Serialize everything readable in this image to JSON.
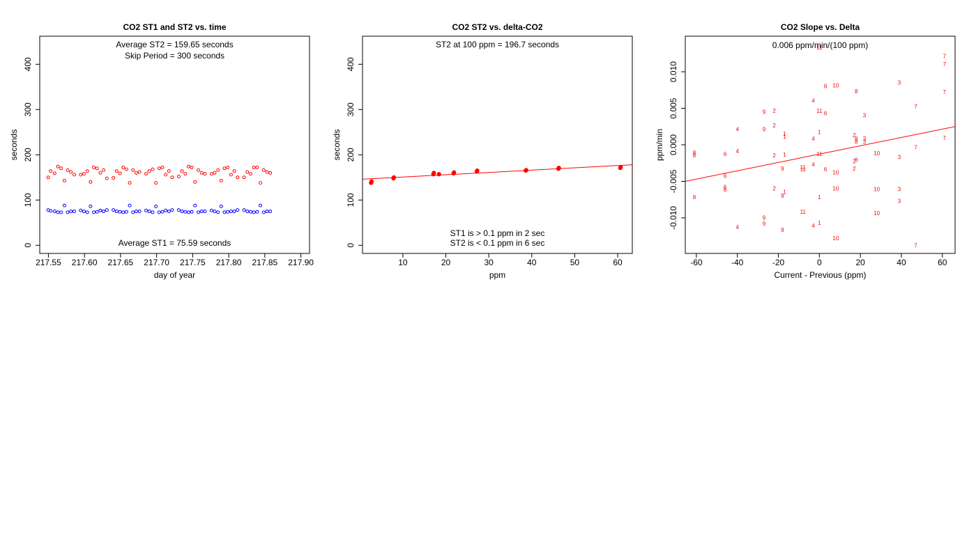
{
  "colors": {
    "st2": "#ff0000",
    "st1": "#0000ff",
    "fit": "#ff0000"
  },
  "chart_data": [
    {
      "type": "scatter",
      "title": "CO2 ST1 and ST2 vs. time",
      "xlabel": "day of year",
      "ylabel": "seconds",
      "xlim": [
        217.538,
        217.912
      ],
      "ylim": [
        -18,
        462
      ],
      "xticks": [
        "217.55",
        "217.60",
        "217.65",
        "217.70",
        "217.75",
        "217.80",
        "217.85",
        "217.90"
      ],
      "yticks": [
        "0",
        "100",
        "200",
        "300",
        "400"
      ],
      "annotations": [
        "Average ST2 =  159.65  seconds",
        "Skip Period =  300  seconds",
        "Average ST1 =  75.59  seconds"
      ],
      "series": [
        {
          "color": "#ff0000",
          "points": [
            [
              217.5497,
              150
            ],
            [
              217.5531,
              164
            ],
            [
              217.5586,
              159
            ],
            [
              217.5631,
              174
            ],
            [
              217.5676,
              170
            ],
            [
              217.5722,
              143
            ],
            [
              217.5767,
              166
            ],
            [
              217.5812,
              162
            ],
            [
              217.5858,
              156
            ],
            [
              217.5948,
              156
            ],
            [
              217.5993,
              158
            ],
            [
              217.6039,
              164
            ],
            [
              217.6084,
              140
            ],
            [
              217.6129,
              172
            ],
            [
              217.6174,
              170
            ],
            [
              217.622,
              160
            ],
            [
              217.6265,
              166
            ],
            [
              217.631,
              148
            ],
            [
              217.6401,
              149
            ],
            [
              217.6446,
              164
            ],
            [
              217.6492,
              159
            ],
            [
              217.6537,
              172
            ],
            [
              217.6582,
              168
            ],
            [
              217.6627,
              138
            ],
            [
              217.6673,
              166
            ],
            [
              217.6718,
              160
            ],
            [
              217.6763,
              162
            ],
            [
              217.6854,
              158
            ],
            [
              217.6899,
              164
            ],
            [
              217.6945,
              168
            ],
            [
              217.699,
              138
            ],
            [
              217.7035,
              170
            ],
            [
              217.708,
              172
            ],
            [
              217.7126,
              156
            ],
            [
              217.7171,
              164
            ],
            [
              217.7216,
              150
            ],
            [
              217.7307,
              152
            ],
            [
              217.7352,
              164
            ],
            [
              217.7398,
              158
            ],
            [
              217.7443,
              174
            ],
            [
              217.7488,
              172
            ],
            [
              217.7533,
              140
            ],
            [
              217.7579,
              166
            ],
            [
              217.7624,
              160
            ],
            [
              217.7669,
              158
            ],
            [
              217.776,
              158
            ],
            [
              217.7805,
              160
            ],
            [
              217.7851,
              166
            ],
            [
              217.7896,
              143
            ],
            [
              217.7941,
              170
            ],
            [
              217.7986,
              172
            ],
            [
              217.8032,
              156
            ],
            [
              217.8077,
              164
            ],
            [
              217.8122,
              150
            ],
            [
              217.8213,
              150
            ],
            [
              217.8258,
              162
            ],
            [
              217.8304,
              158
            ],
            [
              217.8349,
              172
            ],
            [
              217.8394,
              172
            ],
            [
              217.8439,
              138
            ],
            [
              217.8485,
              166
            ],
            [
              217.853,
              162
            ],
            [
              217.8575,
              160
            ]
          ]
        },
        {
          "color": "#0000ff",
          "points": [
            [
              217.5497,
              78
            ],
            [
              217.5531,
              76
            ],
            [
              217.5586,
              75
            ],
            [
              217.5631,
              73
            ],
            [
              217.5676,
              73
            ],
            [
              217.5722,
              88
            ],
            [
              217.5767,
              73
            ],
            [
              217.5812,
              75
            ],
            [
              217.5858,
              75
            ],
            [
              217.5948,
              77
            ],
            [
              217.5993,
              75
            ],
            [
              217.6039,
              73
            ],
            [
              217.6084,
              86
            ],
            [
              217.6129,
              73
            ],
            [
              217.6174,
              74
            ],
            [
              217.622,
              77
            ],
            [
              217.6265,
              75
            ],
            [
              217.631,
              78
            ],
            [
              217.6401,
              78
            ],
            [
              217.6446,
              75
            ],
            [
              217.6492,
              74
            ],
            [
              217.6537,
              73
            ],
            [
              217.6582,
              74
            ],
            [
              217.6627,
              88
            ],
            [
              217.6673,
              73
            ],
            [
              217.6718,
              75
            ],
            [
              217.6763,
              75
            ],
            [
              217.6854,
              77
            ],
            [
              217.6899,
              75
            ],
            [
              217.6945,
              73
            ],
            [
              217.699,
              86
            ],
            [
              217.7035,
              73
            ],
            [
              217.708,
              74
            ],
            [
              217.7126,
              77
            ],
            [
              217.7171,
              75
            ],
            [
              217.7216,
              78
            ],
            [
              217.7307,
              78
            ],
            [
              217.7352,
              75
            ],
            [
              217.7398,
              74
            ],
            [
              217.7443,
              73
            ],
            [
              217.7488,
              74
            ],
            [
              217.7533,
              88
            ],
            [
              217.7579,
              73
            ],
            [
              217.7624,
              75
            ],
            [
              217.7669,
              75
            ],
            [
              217.776,
              77
            ],
            [
              217.7805,
              75
            ],
            [
              217.7851,
              73
            ],
            [
              217.7896,
              86
            ],
            [
              217.7941,
              73
            ],
            [
              217.7986,
              74
            ],
            [
              217.8032,
              75
            ],
            [
              217.8077,
              75
            ],
            [
              217.8122,
              78
            ],
            [
              217.8213,
              78
            ],
            [
              217.8258,
              75
            ],
            [
              217.8304,
              74
            ],
            [
              217.8349,
              73
            ],
            [
              217.8394,
              74
            ],
            [
              217.8439,
              88
            ],
            [
              217.8485,
              73
            ],
            [
              217.853,
              75
            ],
            [
              217.8575,
              75
            ]
          ]
        }
      ]
    },
    {
      "type": "scatter",
      "title": "CO2 ST2 vs. delta-CO2",
      "xlabel": "ppm",
      "ylabel": "seconds",
      "xlim": [
        0.6,
        63.4
      ],
      "ylim": [
        -18,
        462
      ],
      "xticks": [
        "10",
        "20",
        "30",
        "40",
        "50",
        "60"
      ],
      "yticks": [
        "0",
        "100",
        "200",
        "300",
        "400"
      ],
      "annotations": [
        "ST2 at 100 ppm =  196.7  seconds",
        "ST1 is > 0.1 ppm in 2 sec",
        "ST2 is < 0.1 ppm in 6 sec"
      ],
      "fit_line": {
        "x": [
          0.6,
          63.4
        ],
        "y": [
          146,
          178
        ]
      },
      "series": [
        {
          "color": "#ff0000",
          "points": [
            [
              2.6,
              138
            ],
            [
              2.7,
              141
            ],
            [
              7.8,
              148
            ],
            [
              7.9,
              150
            ],
            [
              17.1,
              157
            ],
            [
              17.2,
              160
            ],
            [
              18.4,
              157
            ],
            [
              21.8,
              159
            ],
            [
              21.9,
              161
            ],
            [
              27.2,
              163
            ],
            [
              27.3,
              165
            ],
            [
              38.6,
              165
            ],
            [
              38.7,
              166
            ],
            [
              46.2,
              169
            ],
            [
              46.3,
              171
            ],
            [
              60.6,
              171
            ],
            [
              60.7,
              173
            ]
          ]
        }
      ]
    },
    {
      "type": "scatter",
      "title": "CO2 Slope vs. Delta",
      "xlabel": "Current - Previous (ppm)",
      "ylabel": "ppm/min",
      "xlim": [
        -65.4,
        66.2
      ],
      "ylim": [
        -0.01487,
        0.01487
      ],
      "xticks": [
        "-60",
        "-40",
        "-20",
        "0",
        "20",
        "40",
        "60"
      ],
      "yticks": [
        "-0.010",
        "-0.005",
        "0.000",
        "0.005",
        "0.010"
      ],
      "annotations": [
        "0.006  ppm/min/(100 ppm)"
      ],
      "fit_line": {
        "x": [
          -65.4,
          66.2
        ],
        "y": [
          -0.005,
          0.0025
        ]
      },
      "series": [
        {
          "color": "#ff0000",
          "labels": [
            {
              "x": -61,
              "y": -0.0011,
              "t": "8"
            },
            {
              "x": -61,
              "y": -0.0015,
              "t": "8"
            },
            {
              "x": -61,
              "y": -0.0072,
              "t": "8"
            },
            {
              "x": -46,
              "y": -0.0013,
              "t": "6"
            },
            {
              "x": -46,
              "y": -0.0043,
              "t": "6"
            },
            {
              "x": -46,
              "y": -0.0058,
              "t": "6"
            },
            {
              "x": -46,
              "y": -0.0062,
              "t": "6"
            },
            {
              "x": -40,
              "y": 0.0021,
              "t": "4"
            },
            {
              "x": -40,
              "y": -0.0009,
              "t": "4"
            },
            {
              "x": -40,
              "y": -0.0113,
              "t": "4"
            },
            {
              "x": -27,
              "y": 0.0045,
              "t": "9"
            },
            {
              "x": -27,
              "y": 0.0021,
              "t": "9"
            },
            {
              "x": -27,
              "y": -0.01,
              "t": "9"
            },
            {
              "x": -27,
              "y": -0.0108,
              "t": "9"
            },
            {
              "x": -22,
              "y": 0.0046,
              "t": "2"
            },
            {
              "x": -22,
              "y": 0.0026,
              "t": "2"
            },
            {
              "x": -22,
              "y": -0.0015,
              "t": "2"
            },
            {
              "x": -22,
              "y": -0.006,
              "t": "2"
            },
            {
              "x": -18,
              "y": -0.0033,
              "t": "9"
            },
            {
              "x": -18,
              "y": -0.007,
              "t": "9"
            },
            {
              "x": -18,
              "y": -0.0117,
              "t": "9"
            },
            {
              "x": -17,
              "y": 0.0015,
              "t": "1"
            },
            {
              "x": -17,
              "y": 0.0011,
              "t": "1"
            },
            {
              "x": -17,
              "y": -0.0014,
              "t": "1"
            },
            {
              "x": -17,
              "y": -0.0065,
              "t": "1"
            },
            {
              "x": -8,
              "y": -0.0031,
              "t": "11"
            },
            {
              "x": -8,
              "y": -0.0034,
              "t": "11"
            },
            {
              "x": -8,
              "y": -0.0092,
              "t": "11"
            },
            {
              "x": -3,
              "y": 0.006,
              "t": "4"
            },
            {
              "x": -3,
              "y": 0.0008,
              "t": "4"
            },
            {
              "x": -3,
              "y": -0.0027,
              "t": "4"
            },
            {
              "x": -3,
              "y": -0.0111,
              "t": "4"
            },
            {
              "x": 0,
              "y": 0.0133,
              "t": "11"
            },
            {
              "x": 0,
              "y": 0.0046,
              "t": "11"
            },
            {
              "x": 0,
              "y": -0.0013,
              "t": "11"
            },
            {
              "x": 0,
              "y": 0.0017,
              "t": "1"
            },
            {
              "x": 0,
              "y": -0.0072,
              "t": "1"
            },
            {
              "x": 0,
              "y": -0.0107,
              "t": "1"
            },
            {
              "x": 3,
              "y": 0.008,
              "t": "6"
            },
            {
              "x": 3,
              "y": 0.0043,
              "t": "6"
            },
            {
              "x": 3,
              "y": -0.0034,
              "t": "6"
            },
            {
              "x": 8,
              "y": 0.0081,
              "t": "10"
            },
            {
              "x": 8,
              "y": -0.0038,
              "t": "10"
            },
            {
              "x": 8,
              "y": -0.006,
              "t": "10"
            },
            {
              "x": 8,
              "y": -0.0128,
              "t": "10"
            },
            {
              "x": 17,
              "y": 0.0013,
              "t": "2"
            },
            {
              "x": 17,
              "y": -0.0023,
              "t": "2"
            },
            {
              "x": 17,
              "y": -0.0033,
              "t": "2"
            },
            {
              "x": 18,
              "y": 0.0073,
              "t": "8"
            },
            {
              "x": 18,
              "y": 0.0008,
              "t": "8"
            },
            {
              "x": 18,
              "y": 0.0004,
              "t": "8"
            },
            {
              "x": 18,
              "y": -0.0021,
              "t": "8"
            },
            {
              "x": 22,
              "y": 0.004,
              "t": "3"
            },
            {
              "x": 22,
              "y": 0.0008,
              "t": "3"
            },
            {
              "x": 22,
              "y": 0.0004,
              "t": "3"
            },
            {
              "x": 28,
              "y": -0.0012,
              "t": "10"
            },
            {
              "x": 28,
              "y": -0.0061,
              "t": "10"
            },
            {
              "x": 28,
              "y": -0.0094,
              "t": "10"
            },
            {
              "x": 39,
              "y": 0.0085,
              "t": "3"
            },
            {
              "x": 39,
              "y": -0.0017,
              "t": "3"
            },
            {
              "x": 39,
              "y": -0.0061,
              "t": "3"
            },
            {
              "x": 39,
              "y": -0.0077,
              "t": "3"
            },
            {
              "x": 47,
              "y": 0.0052,
              "t": "7"
            },
            {
              "x": 47,
              "y": -0.0004,
              "t": "7"
            },
            {
              "x": 47,
              "y": -0.0138,
              "t": "7"
            },
            {
              "x": 61,
              "y": 0.0121,
              "t": "7"
            },
            {
              "x": 61,
              "y": 0.011,
              "t": "7"
            },
            {
              "x": 61,
              "y": 0.0072,
              "t": "7"
            },
            {
              "x": 61,
              "y": 0.0009,
              "t": "7"
            }
          ]
        }
      ]
    }
  ]
}
